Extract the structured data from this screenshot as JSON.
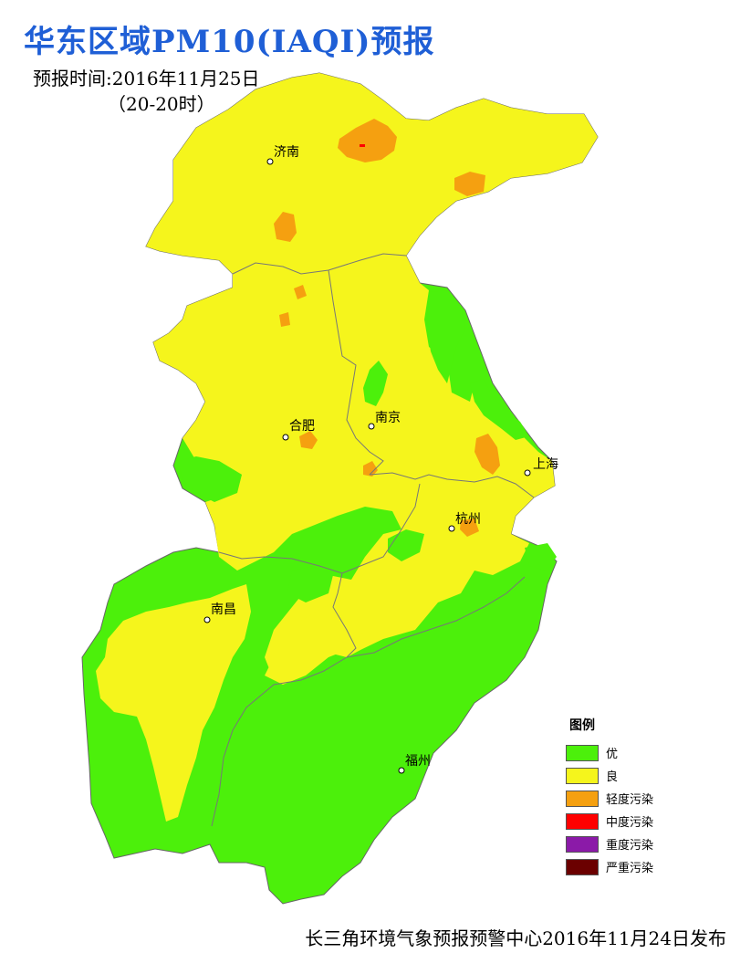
{
  "title": "华东区域PM10(IAQI)预报",
  "forecast_time": "预报时间:2016年11月25日",
  "time_range": "（20-20时）",
  "cities": [
    "济南",
    "南京",
    "合肥",
    "上海",
    "杭州",
    "南昌",
    "福州"
  ],
  "legend": {
    "title": "图例",
    "items": [
      {
        "label": "优",
        "color": "#4cf00b"
      },
      {
        "label": "良",
        "color": "#f5f51c"
      },
      {
        "label": "轻度污染",
        "color": "#f5a010"
      },
      {
        "label": "中度污染",
        "color": "#ff0000"
      },
      {
        "label": "重度污染",
        "color": "#8b1aa8"
      },
      {
        "label": "严重污染",
        "color": "#6b0000"
      }
    ]
  },
  "footer": "长三角环境气象预报预警中心2016年11月24日发布"
}
